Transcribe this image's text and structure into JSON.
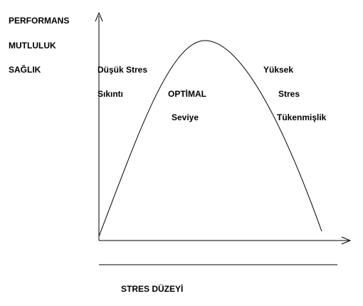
{
  "y_axis_labels": [
    "PERFORMANS",
    "MUTLULUK",
    "SAĞLIK"
  ],
  "regions": [
    {
      "lines": [
        "Düşük Stres",
        "Sıkıntı"
      ]
    },
    {
      "lines": [
        "OPTİMAL",
        "Seviye"
      ]
    },
    {
      "lines": [
        "Yüksek",
        "Stres",
        "Tükenmişlik"
      ]
    }
  ],
  "x_axis_label": "STRES DÜZEYİ"
}
